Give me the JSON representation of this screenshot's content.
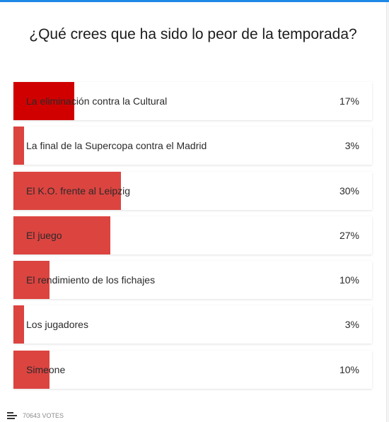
{
  "poll": {
    "question": "¿Qué crees que ha sido lo peor de la temporada?",
    "options": [
      {
        "label": "La eliminación contra la Cultural",
        "percent_label": "17%",
        "percent": 17,
        "selected": true
      },
      {
        "label": "La final de la Supercopa contra el Madrid",
        "percent_label": "3%",
        "percent": 3,
        "selected": false
      },
      {
        "label": "El K.O. frente al Leipzig",
        "percent_label": "30%",
        "percent": 30,
        "selected": false
      },
      {
        "label": "El juego",
        "percent_label": "27%",
        "percent": 27,
        "selected": false
      },
      {
        "label": "El rendimiento de los fichajes",
        "percent_label": "10%",
        "percent": 10,
        "selected": false
      },
      {
        "label": "Los jugadores",
        "percent_label": "3%",
        "percent": 3,
        "selected": false
      },
      {
        "label": "Simeone",
        "percent_label": "10%",
        "percent": 10,
        "selected": false
      }
    ],
    "votes_label": "70643 VOTES"
  },
  "colors": {
    "bar": "#dc4440",
    "bar_selected": "#d10000",
    "accent_top": "#1e88e5"
  },
  "icons": {
    "votes": "bar-list-icon"
  }
}
